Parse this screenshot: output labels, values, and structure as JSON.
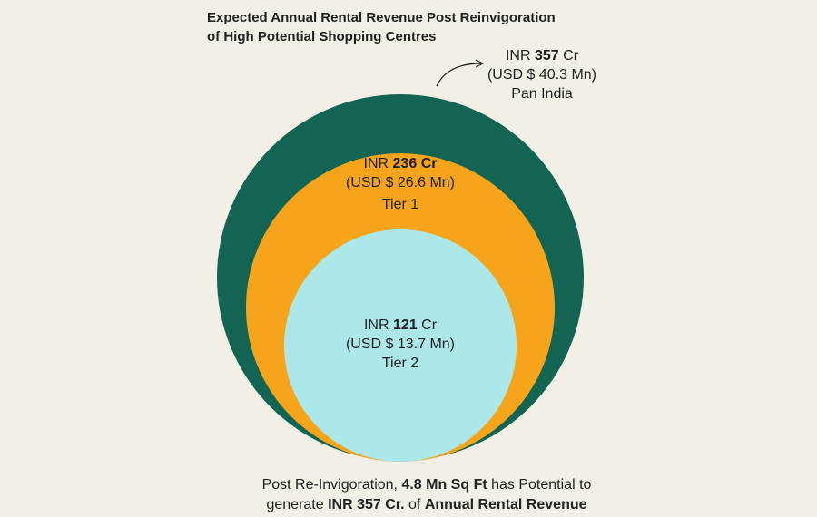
{
  "title": {
    "line1": "Expected Annual Rental Revenue Post Reinvigoration",
    "line2": "of High Potential Shopping Centres"
  },
  "colors": {
    "background": "#f1efe6",
    "pan_india": "#136452",
    "tier1": "#f7a41d",
    "tier2": "#ace7e9",
    "text": "#1f1f1f"
  },
  "chart_data": {
    "type": "nested-circles",
    "title": "Expected Annual Rental Revenue Post Reinvigoration of High Potential Shopping Centres",
    "series": [
      {
        "name": "Pan India",
        "value_inr_cr": 357,
        "value_usd_mn": 40.3,
        "inr_prefix": "INR",
        "inr_value": "357",
        "inr_unit": "Cr",
        "usd_text": "(USD $ 40.3 Mn)"
      },
      {
        "name": "Tier 1",
        "value_inr_cr": 236,
        "value_usd_mn": 26.6,
        "inr_prefix": "INR",
        "inr_value": "236",
        "inr_unit": "Cr",
        "usd_text": "(USD $ 26.6 Mn)"
      },
      {
        "name": "Tier 2",
        "value_inr_cr": 121,
        "value_usd_mn": 13.7,
        "inr_prefix": "INR",
        "inr_value": "121",
        "inr_unit": "Cr",
        "usd_text": "(USD $ 13.7 Mn)"
      }
    ]
  },
  "footer": {
    "part1": "Post Re-Invigoration, ",
    "bold1": "4.8 Mn Sq Ft",
    "part2": " has Potential to",
    "part3": "generate ",
    "bold2": "INR 357 Cr.",
    "part4": " of ",
    "bold3": "Annual Rental Revenue"
  }
}
